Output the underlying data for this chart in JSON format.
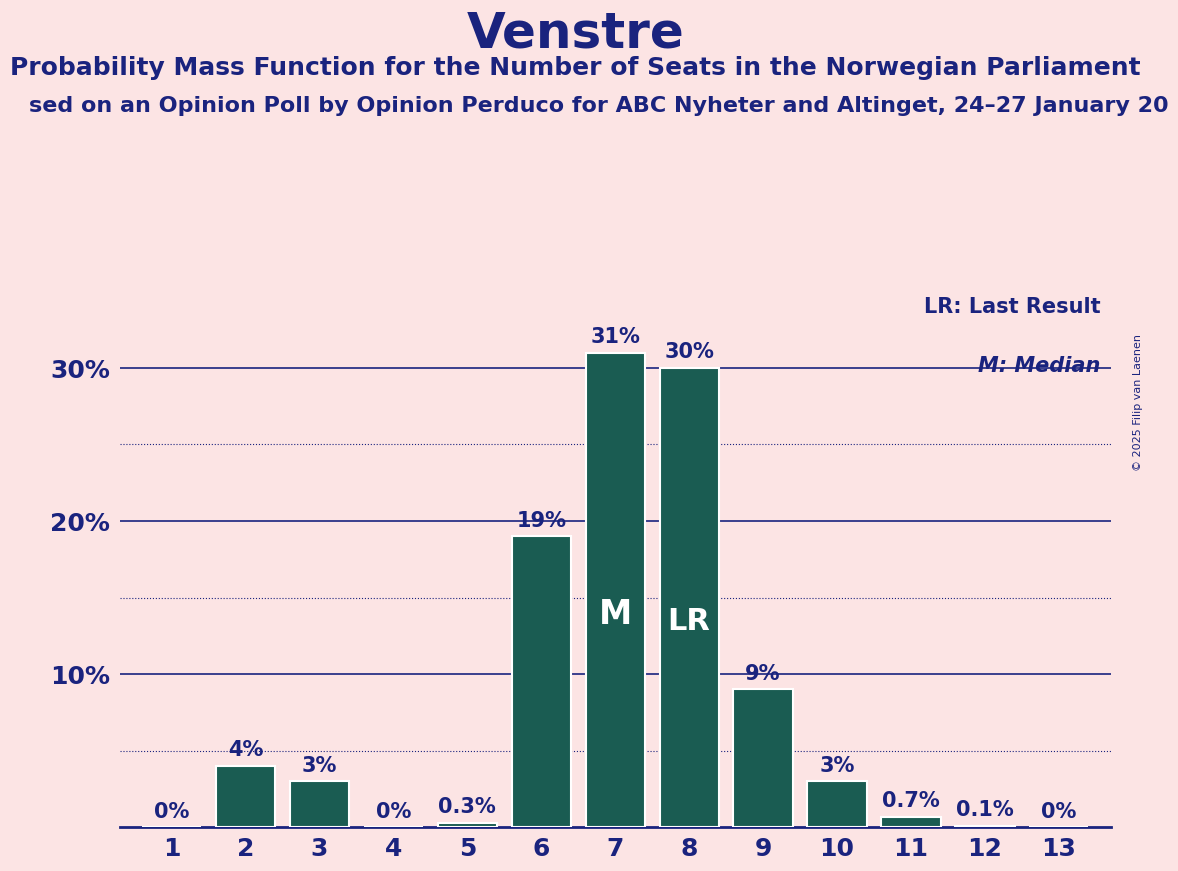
{
  "title": "Venstre",
  "subtitle1": "Probability Mass Function for the Number of Seats in the Norwegian Parliament",
  "subtitle2": "sed on an Opinion Poll by Opinion Perduco for ABC Nyheter and Altinget, 24–27 January 20",
  "copyright": "© 2025 Filip van Laenen",
  "categories": [
    1,
    2,
    3,
    4,
    5,
    6,
    7,
    8,
    9,
    10,
    11,
    12,
    13
  ],
  "values": [
    0.0,
    4.0,
    3.0,
    0.0,
    0.3,
    19.0,
    31.0,
    30.0,
    9.0,
    3.0,
    0.7,
    0.1,
    0.0
  ],
  "labels": [
    "0%",
    "4%",
    "3%",
    "0%",
    "0.3%",
    "19%",
    "31%",
    "30%",
    "9%",
    "3%",
    "0.7%",
    "0.1%",
    "0%"
  ],
  "bar_color": "#1a5c52",
  "background_color": "#fce4e4",
  "text_color": "#1a237e",
  "median_bar": 7,
  "lr_bar": 8,
  "median_label": "M",
  "lr_label": "LR",
  "legend_lr": "LR: Last Result",
  "legend_m": "M: Median",
  "ylim": [
    0,
    35
  ],
  "solid_gridlines": [
    10,
    20,
    30
  ],
  "dotted_gridlines": [
    5,
    15,
    25
  ],
  "title_fontsize": 36,
  "subtitle1_fontsize": 18,
  "subtitle2_fontsize": 16,
  "tick_fontsize": 18,
  "bar_label_fontsize": 15,
  "bar_inner_label_fontsize": 24
}
